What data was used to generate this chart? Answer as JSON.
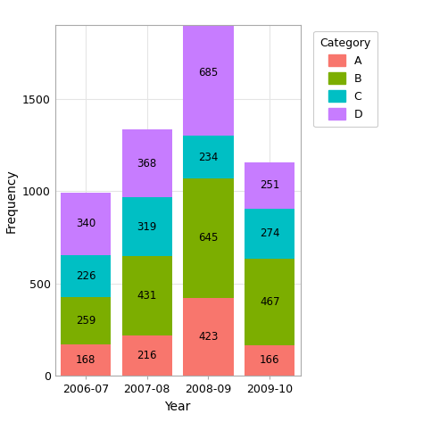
{
  "years": [
    "2006-07",
    "2007-08",
    "2008-09",
    "2009-10"
  ],
  "categories": [
    "A",
    "B",
    "C",
    "D"
  ],
  "values": {
    "A": [
      168,
      216,
      423,
      166
    ],
    "B": [
      259,
      431,
      645,
      467
    ],
    "C": [
      226,
      319,
      234,
      274
    ],
    "D": [
      340,
      368,
      685,
      251
    ]
  },
  "colors": {
    "A": "#F8766D",
    "B": "#7CAE00",
    "C": "#00BFC4",
    "D": "#C77CFF"
  },
  "xlabel": "Year",
  "ylabel": "Frequency",
  "ylim": [
    0,
    1900
  ],
  "yticks": [
    0,
    500,
    1000,
    1500
  ],
  "bar_width": 0.82,
  "background_color": "#FFFFFF",
  "panel_background": "#FFFFFF",
  "grid_color": "#E5E5E5",
  "label_fontsize": 8.5,
  "axis_label_fontsize": 10,
  "tick_fontsize": 9
}
